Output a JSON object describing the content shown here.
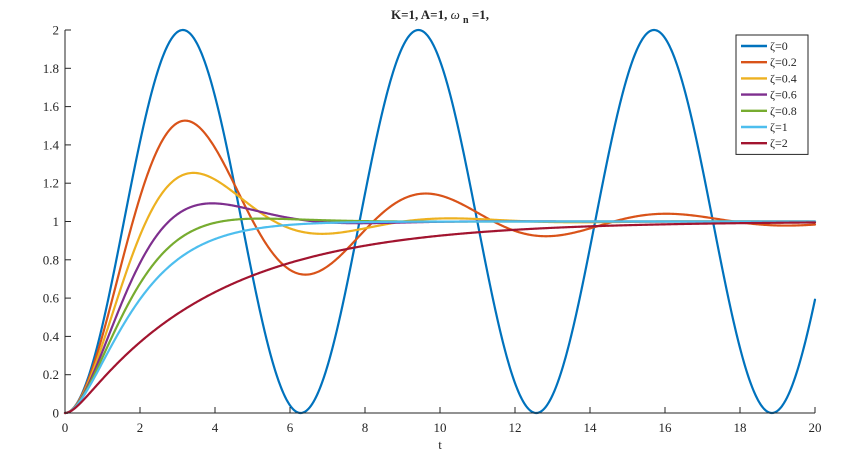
{
  "chart_data": {
    "type": "line",
    "title": "K=1, A=1,  ω_n=1,",
    "title_parts": {
      "prefix": "K=1, A=1, ",
      "omega": "ω",
      "subscript": "n",
      "suffix": "=1,"
    },
    "xlabel": "t",
    "ylabel": "",
    "xlim": [
      0,
      20
    ],
    "ylim": [
      0,
      2
    ],
    "xticks": [
      0,
      2,
      4,
      6,
      8,
      10,
      12,
      14,
      16,
      18,
      20
    ],
    "yticks": [
      0,
      0.2,
      0.4,
      0.6,
      0.8,
      1,
      1.2,
      1.4,
      1.6,
      1.8,
      2
    ],
    "xtick_labels": [
      "0",
      "2",
      "4",
      "6",
      "8",
      "10",
      "12",
      "14",
      "16",
      "18",
      "20"
    ],
    "ytick_labels": [
      "0",
      "0.2",
      "0.4",
      "0.6",
      "0.8",
      "1",
      "1.2",
      "1.4",
      "1.6",
      "1.8",
      "2"
    ],
    "grid": false,
    "legend_position": "top-right",
    "model": "step response y(t) = 1 - e^(-zeta*t) * (cos(wd*t) + zeta/sqrt(1-zeta^2)*sin(wd*t)), K=1, A=1, wn=1",
    "t_start": 0,
    "t_end": 20,
    "series": [
      {
        "name": "ζ=0",
        "zeta": 0,
        "color": "#0072BD"
      },
      {
        "name": "ζ=0.2",
        "zeta": 0.2,
        "color": "#D95319"
      },
      {
        "name": "ζ=0.4",
        "zeta": 0.4,
        "color": "#EDB120"
      },
      {
        "name": "ζ=0.6",
        "zeta": 0.6,
        "color": "#7E2F8E"
      },
      {
        "name": "ζ=0.8",
        "zeta": 0.8,
        "color": "#77AC30"
      },
      {
        "name": "ζ=1",
        "zeta": 1,
        "color": "#4DBEEE"
      },
      {
        "name": "ζ=2",
        "zeta": 2,
        "color": "#A2142F"
      }
    ]
  }
}
